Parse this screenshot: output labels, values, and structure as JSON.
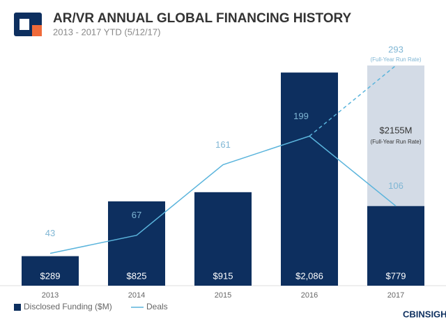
{
  "chart_data": {
    "type": "bar-line",
    "title": "AR/VR ANNUAL GLOBAL FINANCING HISTORY",
    "subtitle": "2013 - 2017 YTD (5/12/17)",
    "categories": [
      "2013",
      "2014",
      "2015",
      "2016",
      "2017"
    ],
    "series": [
      {
        "name": "Disclosed Funding ($M)",
        "color": "#0d2f5f",
        "values": [
          289,
          825,
          915,
          2086,
          779
        ],
        "value_labels": [
          "$289",
          "$825",
          "$915",
          "$2,086",
          "$779"
        ]
      },
      {
        "name": "Deals",
        "color": "#5ab4dc",
        "axis": "y2",
        "values": [
          43,
          67,
          161,
          199,
          106
        ]
      }
    ],
    "projection": {
      "funding": {
        "value": 2155,
        "value_label": "$2155M",
        "note": "(Full-Year Run Rate)",
        "color": "#d3dbe6"
      },
      "deals": {
        "value": 293,
        "note": "(Full-Year Run Rate)"
      }
    },
    "logo_text": "CBINSIGHTS"
  }
}
